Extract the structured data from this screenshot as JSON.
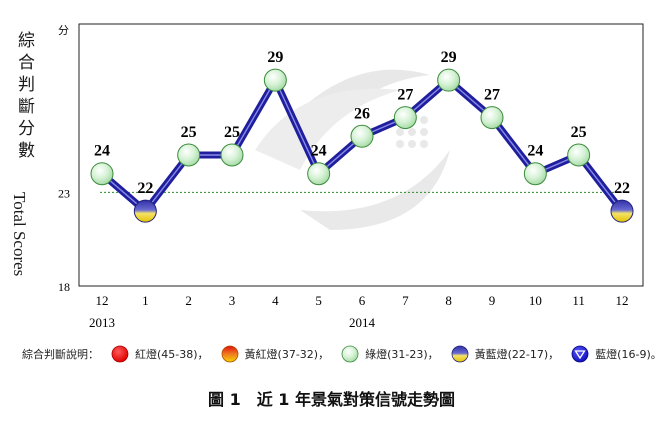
{
  "chart_data": {
    "type": "line",
    "title": "圖 1　近 1 年景氣對策信號走勢圖",
    "ylabel_zh": "綜合判斷分數",
    "ylabel_en": "Total Scores",
    "unit": "分",
    "categories": [
      "12",
      "1",
      "2",
      "3",
      "4",
      "5",
      "6",
      "7",
      "8",
      "9",
      "10",
      "11",
      "12"
    ],
    "year_labels": [
      {
        "label": "2013",
        "at": "12"
      },
      {
        "label": "2014",
        "at": "6"
      }
    ],
    "values": [
      24,
      22,
      25,
      25,
      29,
      24,
      26,
      27,
      29,
      27,
      24,
      25,
      22
    ],
    "signals": [
      "green",
      "yellow-blue",
      "green",
      "green",
      "green",
      "green",
      "green",
      "green",
      "green",
      "green",
      "green",
      "green",
      "yellow-blue"
    ],
    "yticks": [
      18,
      23
    ],
    "reference_line": 23,
    "ylim": [
      18,
      32
    ],
    "line_color": "#1f1f9e",
    "reference_color": "#2e8b2e"
  },
  "legend": {
    "title": "綜合判斷說明：",
    "items": [
      {
        "label": "紅燈(45-38)，",
        "color": "red"
      },
      {
        "label": "黃紅燈(37-32)，",
        "color": "yellow-red"
      },
      {
        "label": "綠燈(31-23)，",
        "color": "green"
      },
      {
        "label": "黃藍燈(22-17)，",
        "color": "yellow-blue"
      },
      {
        "label": "藍燈(16-9)。",
        "color": "blue"
      }
    ]
  }
}
